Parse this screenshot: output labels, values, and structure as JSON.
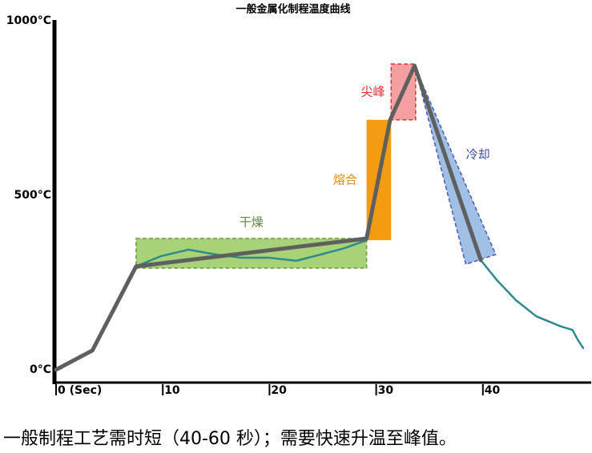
{
  "chart_data": {
    "type": "line",
    "title": "一般金属化制程温度曲线",
    "caption": "一般制程工艺需时短（40-60 秒）；需要快速升温至峰值。",
    "xlim": [
      0,
      50
    ],
    "xticks": [
      {
        "value": 0,
        "label": "0 (Sec)"
      },
      10,
      20,
      30,
      40
    ],
    "ylim": [
      0,
      1000
    ],
    "yticks": [
      {
        "value": 0,
        "label": "0°C"
      },
      {
        "value": 500,
        "label": "500°C"
      },
      {
        "value": 1000,
        "label": "1000°C"
      }
    ],
    "zones": [
      {
        "label": "干燥",
        "color": "#8bc34a",
        "label_color": "#5a8a3a",
        "x": [
          7.5,
          29.1
        ],
        "y": [
          305,
          390
        ]
      },
      {
        "label": "熔合",
        "color": "#f39c12",
        "label_color": "#e08e0b",
        "x": [
          29.1,
          31.4
        ],
        "y": [
          385,
          730
        ]
      },
      {
        "label": "尖峰",
        "color": "#f08080",
        "label_color": "#e03030",
        "x": [
          31.4,
          33.7
        ],
        "y": [
          730,
          890
        ]
      },
      {
        "label": "冷却",
        "color": "#8fb4e0",
        "label_color": "#3a4a9a",
        "points": [
          [
            33.6,
            885
          ],
          [
            41.2,
            344
          ],
          [
            38.4,
            316
          ]
        ]
      }
    ],
    "series": [
      {
        "color": "#2e8b8b",
        "x": [
          0,
          3.4,
          7.5,
          9.8,
          12.4,
          15.0,
          17.3,
          19.9,
          22.5,
          24.8,
          27.0,
          29.1,
          31.3,
          33.6,
          39.8,
          41.3,
          43.1,
          45.0,
          47.3,
          48.4,
          48.9,
          49.4
        ],
        "values": [
          14,
          69,
          310,
          339,
          358,
          344,
          335,
          335,
          326,
          344,
          362,
          385,
          729,
          885,
          328,
          271,
          213,
          167,
          138,
          128,
          99,
          76
        ]
      },
      {
        "color": "#5f5f5f",
        "x": [
          0,
          3.4,
          7.5,
          29.1,
          31.3,
          33.6,
          39.8
        ],
        "values": [
          14,
          69,
          310,
          390,
          729,
          885,
          328
        ]
      }
    ]
  }
}
